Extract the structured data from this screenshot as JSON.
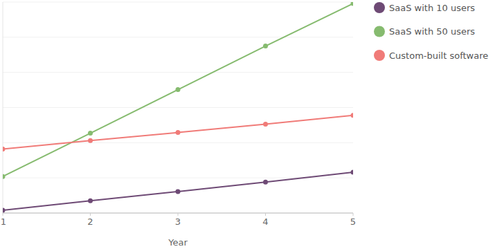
{
  "chart_data": {
    "type": "line",
    "x_label": "Year",
    "x": [
      1,
      2,
      3,
      4,
      5
    ],
    "xlim": [
      1,
      5
    ],
    "xticks": [
      1,
      2,
      3,
      4,
      5
    ],
    "ylim": [
      0,
      6
    ],
    "yticks": [
      0,
      1,
      2,
      3,
      4,
      5,
      6
    ],
    "tick_labels": "x",
    "grid": true,
    "legend": "top-right",
    "marker": "circle",
    "series": [
      {
        "name": "SaaS with 10 users",
        "color": "#6e4a75",
        "values": [
          0.08,
          0.35,
          0.61,
          0.88,
          1.16
        ]
      },
      {
        "name": "SaaS with 50 users",
        "color": "#86bb6f",
        "values": [
          1.04,
          2.27,
          3.51,
          4.75,
          5.96
        ]
      },
      {
        "name": "Custom-built software",
        "color": "#f07b78",
        "values": [
          1.82,
          2.06,
          2.29,
          2.53,
          2.78
        ]
      }
    ]
  }
}
